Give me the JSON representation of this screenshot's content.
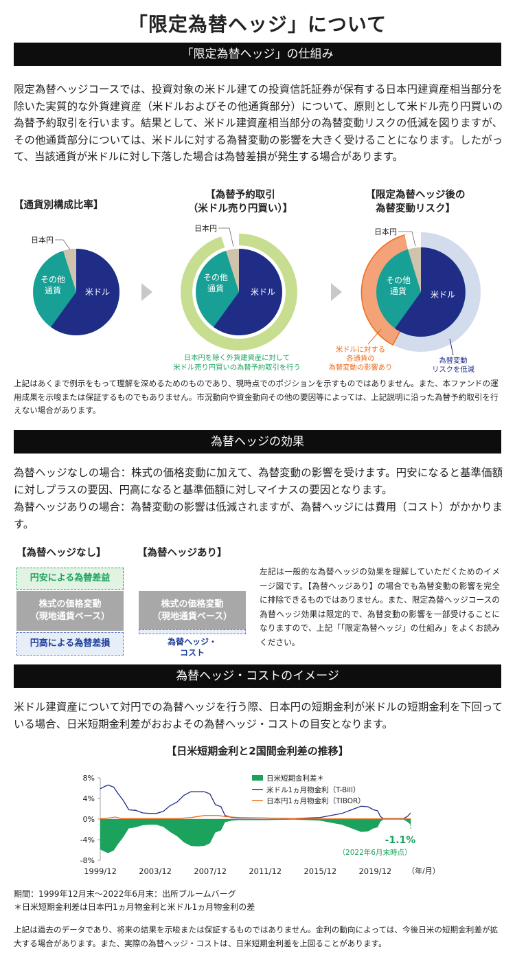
{
  "page_title": "「限定為替ヘッジ」について",
  "section1": {
    "heading": "「限定為替ヘッジ」の仕組み",
    "body": "限定為替ヘッジコースでは、投資対象の米ドル建ての投資信託証券が保有する日本円建資産相当部分を除いた実質的な外貨建資産（米ドルおよびその他通貨部分）について、原則として米ドル売り円買いの為替予約取引を行います。結果として、米ドル建資産相当部分の為替変動リスクの低減を図りますが、その他通貨部分については、米ドルに対する為替変動の影響を大きく受けることになります。したがって、当該通貨が米ドルに対し下落した場合は為替差損が発生する場合があります。",
    "pie1": {
      "title": "【通貨別構成比率】",
      "usd": "米ドル",
      "other_l1": "その他",
      "other_l2": "通貨",
      "jpy": "日本円"
    },
    "pie2": {
      "title_l1": "【為替予約取引",
      "title_l2": "（米ドル売り円買い）】",
      "usd": "米ドル",
      "other_l1": "その他",
      "other_l2": "通貨",
      "jpy": "日本円",
      "caption_l1": "日本円を除く外貨建資産に対して",
      "caption_l2": "米ドル売り円買いの為替予約取引を行う"
    },
    "pie3": {
      "title_l1": "【限定為替ヘッジ後の",
      "title_l2": "為替変動リスク】",
      "usd": "米ドル",
      "other_l1": "その他",
      "other_l2": "通貨",
      "jpy": "日本円",
      "caption_left_l1": "米ドルに対する",
      "caption_left_l2": "各通貨の",
      "caption_left_l3": "為替変動の影響あり",
      "caption_right_l1": "為替変動",
      "caption_right_l2": "リスクを低減"
    },
    "disclaimer": "上記はあくまで例示をもって理解を深めるためのものであり、現時点でのポジションを示すものではありません。また、本ファンドの運用成果を示唆または保証するものでもありません。市況動向や資金動向その他の要因等によっては、上記説明に沿った為替予約取引を行えない場合があります。"
  },
  "section2": {
    "heading": "為替ヘッジの効果",
    "body_l1": "為替ヘッジなしの場合：株式の価格変動に加えて、為替変動の影響を受けます。円安になると基準価額に対しプラスの要因、円高になると基準価額に対しマイナスの要因となります。",
    "body_l2": "為替ヘッジありの場合：為替変動の影響は低減されますが、為替ヘッジには費用（コスト）がかかります。",
    "no_hedge": {
      "title": "【為替ヘッジなし】",
      "gain": "円安による為替差益",
      "stock_l1": "株式の価格変動",
      "stock_l2": "（現地通貨ベース）",
      "loss": "円高による為替差損"
    },
    "hedge": {
      "title": "【為替ヘッジあり】",
      "stock_l1": "株式の価格変動",
      "stock_l2": "（現地通貨ベース）",
      "cost_l1": "為替ヘッジ・",
      "cost_l2": "コスト"
    },
    "explanation": "左記は一般的な為替ヘッジの効果を理解していただくためのイメージ図です。【為替ヘッジあり】の場合でも為替変動の影響を完全に排除できるものではありません。また、限定為替ヘッジコースの為替ヘッジ効果は限定的で、為替変動の影響を一部受けることになりますので、上記「「限定為替ヘッジ」の仕組み」をよくお読みください。"
  },
  "section3": {
    "heading": "為替ヘッジ・コストのイメージ",
    "body": "米ドル建資産について対円での為替ヘッジを行う際、日本円の短期金利が米ドルの短期金利を下回っている場合、日米短期金利差がおおよその為替ヘッジ・コストの目安となります。",
    "chart_title": "【日米短期金利と2国間金利差の推移】",
    "callout_value": "-1.1%",
    "callout_note": "（2022年6月末時点）",
    "period": "期間：1999年12月末～2022年6月末：出所ブルームバーグ",
    "footnote": "＊日米短期金利差は日本円1ヵ月物金利と米ドル1ヵ月物金利の差",
    "disclaimer": "上記は過去のデータであり、将来の結果を示唆または保証するものではありません。金利の動向によっては、今後日米の短期金利差が拡大する場合があります。また、実際の為替ヘッジ・コストは、日米短期金利差を上回ることがあります。"
  },
  "colors": {
    "usd_navy": "#1f2d87",
    "other_teal": "#18a096",
    "jpy_tan": "#cfc3ad",
    "ring_green": "#c7dd8f",
    "ring_blue": "#d3dcec",
    "fx_orange": "#f4a277",
    "spread_green": "#1ba25c",
    "jpy_line_orange": "#ef6a1a",
    "gain_green": "#e2f3e4",
    "loss_blue": "#e7eef8"
  },
  "chart_data": {
    "type": "area",
    "title": "【日米短期金利と2国間金利差の推移】",
    "xlabel": "（年/月）",
    "ylabel": "",
    "x_ticks": [
      "1999/12",
      "2003/12",
      "2007/12",
      "2011/12",
      "2015/12",
      "2019/12"
    ],
    "y_ticks": [
      "8%",
      "4%",
      "0%",
      "-4%",
      "-8%"
    ],
    "ylim": [
      -8,
      8
    ],
    "x_range": [
      1999.92,
      2022.5
    ],
    "legend_position": "top-right",
    "series": [
      {
        "name": "日米短期金利差＊",
        "style": "area",
        "color": "#1ba25c",
        "x": [
          1999.92,
          2000.3,
          2000.5,
          2000.9,
          2001.2,
          2001.6,
          2002.0,
          2002.5,
          2003.0,
          2003.5,
          2004.0,
          2004.5,
          2005.0,
          2005.5,
          2006.0,
          2006.5,
          2007.0,
          2007.5,
          2007.9,
          2008.3,
          2008.7,
          2009.0,
          2009.5,
          2010,
          2012,
          2014,
          2015.9,
          2016.5,
          2017.5,
          2018.2,
          2018.9,
          2019.4,
          2019.8,
          2020.1,
          2020.3,
          2020.5,
          2022.0,
          2022.3,
          2022.5
        ],
        "values": [
          -5.9,
          -6.4,
          -6.6,
          -6.1,
          -4.9,
          -3.5,
          -1.8,
          -1.6,
          -1.2,
          -1.1,
          -1.1,
          -1.5,
          -2.5,
          -3.3,
          -4.5,
          -5.2,
          -5.3,
          -5.2,
          -4.7,
          -2.6,
          -2.2,
          -0.6,
          -0.3,
          -0.2,
          -0.2,
          -0.1,
          -0.3,
          -0.6,
          -1.1,
          -1.8,
          -2.5,
          -2.4,
          -1.8,
          -1.6,
          -0.5,
          -0.1,
          -0.1,
          -0.6,
          -1.1
        ]
      },
      {
        "name": "米ドル1ヵ月物金利（T-Bill）",
        "style": "line",
        "color": "#1f2d87",
        "x": [
          1999.92,
          2000.3,
          2000.5,
          2000.9,
          2001.2,
          2001.6,
          2002.0,
          2002.5,
          2003.0,
          2003.5,
          2004.0,
          2004.5,
          2005.0,
          2005.5,
          2006.0,
          2006.5,
          2007.0,
          2007.5,
          2007.9,
          2008.3,
          2008.7,
          2009.0,
          2009.5,
          2010,
          2012,
          2014,
          2015.9,
          2016.5,
          2017.5,
          2018.2,
          2018.9,
          2019.4,
          2019.8,
          2020.1,
          2020.3,
          2020.5,
          2022.0,
          2022.3,
          2022.5
        ],
        "values": [
          5.9,
          6.4,
          6.6,
          6.2,
          5.0,
          3.6,
          1.8,
          1.7,
          1.2,
          1.1,
          1.1,
          1.5,
          2.6,
          3.3,
          4.6,
          5.3,
          5.3,
          5.3,
          4.9,
          2.8,
          2.4,
          0.7,
          0.3,
          0.2,
          0.2,
          0.1,
          0.3,
          0.6,
          1.1,
          1.8,
          2.5,
          2.4,
          1.8,
          1.6,
          0.5,
          0.1,
          0.1,
          0.6,
          1.2
        ]
      },
      {
        "name": "日本円1ヵ月物金利（TIBOR）",
        "style": "line",
        "color": "#ef6a1a",
        "x": [
          1999.92,
          2000.5,
          2001.0,
          2001.5,
          2005.5,
          2006.5,
          2007.0,
          2007.5,
          2008.5,
          2009.0,
          2010.0,
          2012.0,
          2014.0,
          2016.0,
          2018.0,
          2020.0,
          2022.5
        ],
        "values": [
          0.1,
          0.2,
          0.4,
          0.1,
          0.1,
          0.3,
          0.5,
          0.7,
          0.7,
          0.5,
          0.3,
          0.2,
          0.1,
          0.05,
          0.05,
          0.05,
          0.05
        ]
      }
    ]
  }
}
